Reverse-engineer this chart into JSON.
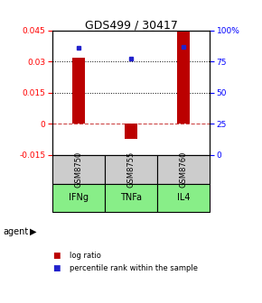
{
  "title": "GDS499 / 30417",
  "samples": [
    "GSM8750",
    "GSM8755",
    "GSM8760"
  ],
  "agents": [
    "IFNg",
    "TNFa",
    "IL4"
  ],
  "log_ratios": [
    0.032,
    -0.007,
    0.045
  ],
  "percentile_ranks": [
    0.86,
    0.77,
    0.87
  ],
  "ylim": [
    -0.015,
    0.045
  ],
  "yticks_left": [
    -0.015,
    0,
    0.015,
    0.03,
    0.045
  ],
  "yticks_right": [
    0,
    25,
    50,
    75,
    100
  ],
  "bar_color": "#bb0000",
  "dot_color": "#2222cc",
  "zero_line_color": "#cc4444",
  "grid_color": "#000000",
  "sample_bg": "#cccccc",
  "agent_bg": "#88ee88",
  "legend_bar_color": "#bb0000",
  "legend_dot_color": "#2222cc",
  "bar_width": 0.25
}
